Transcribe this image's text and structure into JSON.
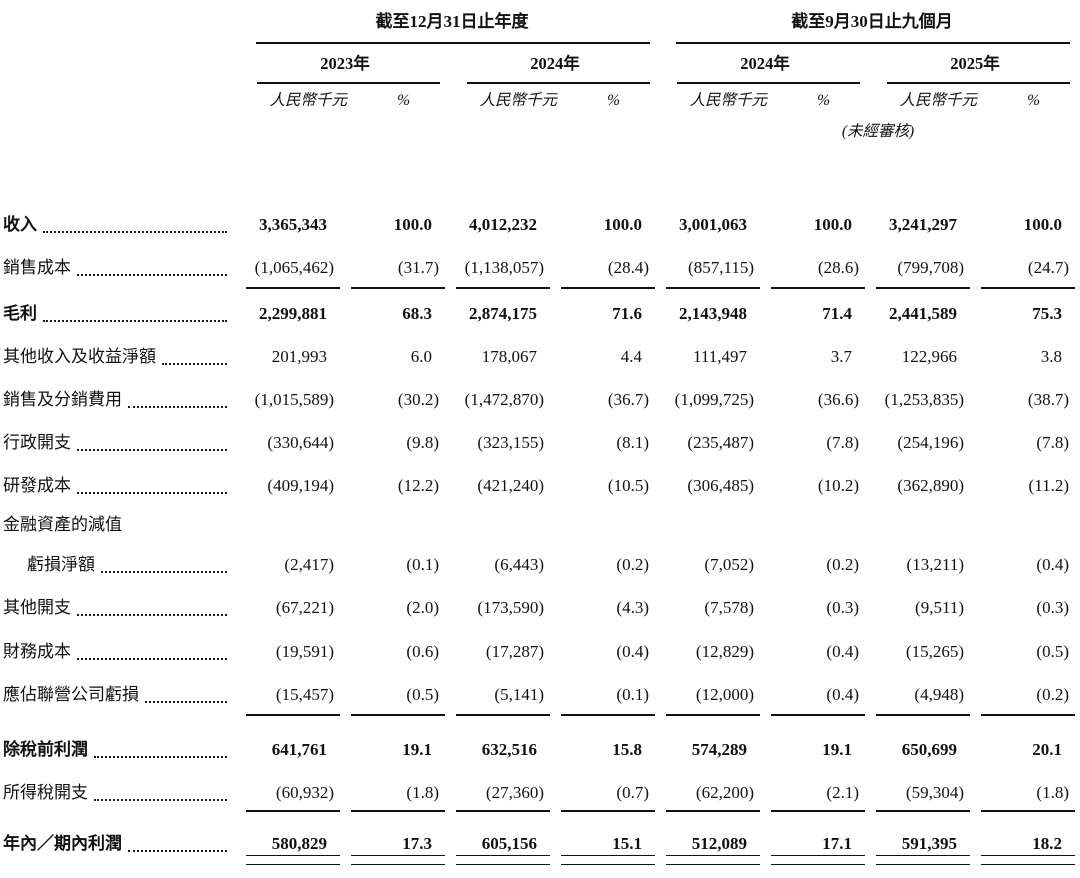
{
  "table": {
    "period_headers": [
      "截至12月31日止年度",
      "截至9月30日止九個月"
    ],
    "year_headers": [
      "2023年",
      "2024年",
      "2024年",
      "2025年"
    ],
    "unit_label": "人民幣千元",
    "percent_label": "%",
    "unaudited_note": "(未經審核)",
    "rows": [
      {
        "label": "收入",
        "bold": true,
        "indent": false,
        "dots": true,
        "rule": null,
        "values": [
          "3,365,343",
          "100.0",
          "4,012,232",
          "100.0",
          "3,001,063",
          "100.0",
          "3,241,297",
          "100.0"
        ]
      },
      {
        "label": "銷售成本",
        "bold": false,
        "indent": false,
        "dots": true,
        "rule": "single",
        "values": [
          "(1,065,462)",
          "(31.7)",
          "(1,138,057)",
          "(28.4)",
          "(857,115)",
          "(28.6)",
          "(799,708)",
          "(24.7)"
        ]
      },
      {
        "label": "毛利",
        "bold": true,
        "indent": false,
        "dots": true,
        "rule": null,
        "values": [
          "2,299,881",
          "68.3",
          "2,874,175",
          "71.6",
          "2,143,948",
          "71.4",
          "2,441,589",
          "75.3"
        ]
      },
      {
        "label": "其他收入及收益淨額",
        "bold": false,
        "indent": false,
        "dots": true,
        "rule": null,
        "values": [
          "201,993",
          "6.0",
          "178,067",
          "4.4",
          "111,497",
          "3.7",
          "122,966",
          "3.8"
        ]
      },
      {
        "label": "銷售及分銷費用",
        "bold": false,
        "indent": false,
        "dots": true,
        "rule": null,
        "values": [
          "(1,015,589)",
          "(30.2)",
          "(1,472,870)",
          "(36.7)",
          "(1,099,725)",
          "(36.6)",
          "(1,253,835)",
          "(38.7)"
        ]
      },
      {
        "label": "行政開支",
        "bold": false,
        "indent": false,
        "dots": true,
        "rule": null,
        "values": [
          "(330,644)",
          "(9.8)",
          "(323,155)",
          "(8.1)",
          "(235,487)",
          "(7.8)",
          "(254,196)",
          "(7.8)"
        ]
      },
      {
        "label": "研發成本",
        "bold": false,
        "indent": false,
        "dots": true,
        "rule": null,
        "values": [
          "(409,194)",
          "(12.2)",
          "(421,240)",
          "(10.5)",
          "(306,485)",
          "(10.2)",
          "(362,890)",
          "(11.2)"
        ]
      },
      {
        "label": "金融資產的減值",
        "bold": false,
        "indent": false,
        "dots": false,
        "rule": null,
        "values": [
          "",
          "",
          "",
          "",
          "",
          "",
          "",
          ""
        ]
      },
      {
        "label": "虧損淨額",
        "bold": false,
        "indent": true,
        "dots": true,
        "rule": null,
        "values": [
          "(2,417)",
          "(0.1)",
          "(6,443)",
          "(0.2)",
          "(7,052)",
          "(0.2)",
          "(13,211)",
          "(0.4)"
        ]
      },
      {
        "label": "其他開支",
        "bold": false,
        "indent": false,
        "dots": true,
        "rule": null,
        "values": [
          "(67,221)",
          "(2.0)",
          "(173,590)",
          "(4.3)",
          "(7,578)",
          "(0.3)",
          "(9,511)",
          "(0.3)"
        ]
      },
      {
        "label": "財務成本",
        "bold": false,
        "indent": false,
        "dots": true,
        "rule": null,
        "values": [
          "(19,591)",
          "(0.6)",
          "(17,287)",
          "(0.4)",
          "(12,829)",
          "(0.4)",
          "(15,265)",
          "(0.5)"
        ]
      },
      {
        "label": "應佔聯營公司虧損",
        "bold": false,
        "indent": false,
        "dots": true,
        "rule": "single",
        "values": [
          "(15,457)",
          "(0.5)",
          "(5,141)",
          "(0.1)",
          "(12,000)",
          "(0.4)",
          "(4,948)",
          "(0.2)"
        ]
      },
      {
        "label": "除稅前利潤",
        "bold": true,
        "indent": false,
        "dots": true,
        "rule": null,
        "values": [
          "641,761",
          "19.1",
          "632,516",
          "15.8",
          "574,289",
          "19.1",
          "650,699",
          "20.1"
        ]
      },
      {
        "label": "所得稅開支",
        "bold": false,
        "indent": false,
        "dots": true,
        "rule": "single",
        "values": [
          "(60,932)",
          "(1.8)",
          "(27,360)",
          "(0.7)",
          "(62,200)",
          "(2.1)",
          "(59,304)",
          "(1.8)"
        ]
      },
      {
        "label": "年內／期內利潤",
        "bold": true,
        "indent": false,
        "dots": true,
        "rule": "double",
        "values": [
          "580,829",
          "17.3",
          "605,156",
          "15.1",
          "512,089",
          "17.1",
          "591,395",
          "18.2"
        ]
      }
    ]
  },
  "colors": {
    "text": "#111111",
    "background": "#ffffff",
    "rule": "#111111"
  }
}
